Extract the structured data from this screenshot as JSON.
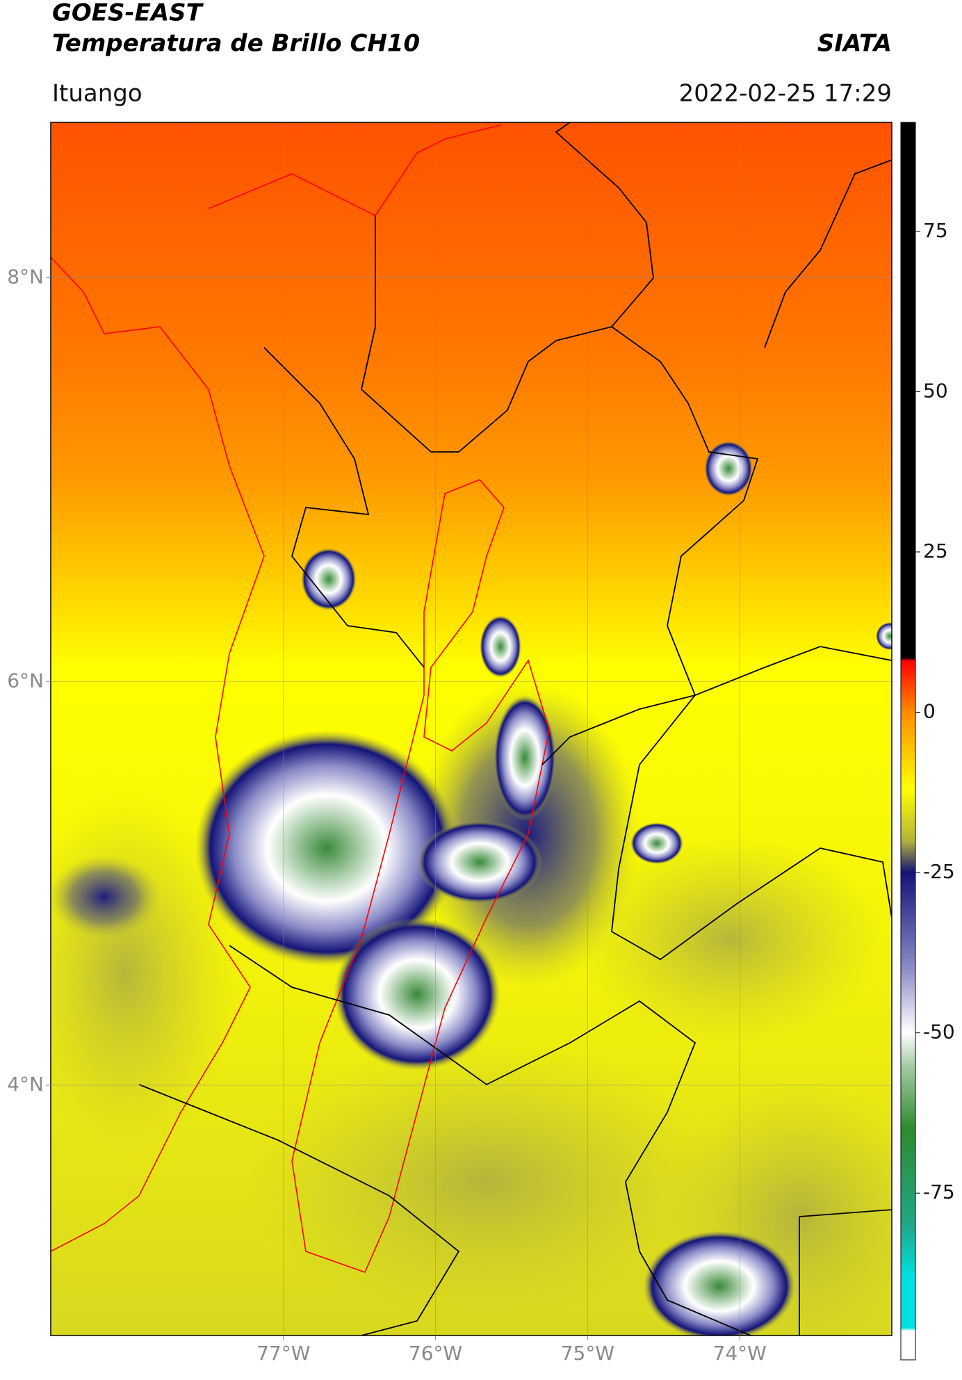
{
  "header": {
    "title_line1": "GOES-EAST",
    "title_line2": "Temperatura de Brillo CH10",
    "source": "SIATA",
    "location": "Ituango",
    "datetime": "2022-02-25 17:29"
  },
  "map": {
    "xlim": [
      -78.53,
      -73.0
    ],
    "ylim": [
      2.76,
      8.77
    ],
    "xticks": [
      {
        "value": -77,
        "label": "77°W"
      },
      {
        "value": -76,
        "label": "76°W"
      },
      {
        "value": -75,
        "label": "75°W"
      },
      {
        "value": -74,
        "label": "74°W"
      }
    ],
    "yticks": [
      {
        "value": 8,
        "label": "8°N"
      },
      {
        "value": 6,
        "label": "6°N"
      },
      {
        "value": 4,
        "label": "4°N"
      }
    ],
    "grid": true
  },
  "colorbar": {
    "lim": [
      -101,
      92
    ],
    "ticks": [
      75,
      50,
      25,
      0,
      -25,
      -50,
      -75
    ],
    "stops": [
      {
        "value": 92,
        "color": "#000000"
      },
      {
        "value": 8.5,
        "color": "#000000"
      },
      {
        "value": 8,
        "color": "#ff0000"
      },
      {
        "value": 0,
        "color": "#ff8c00"
      },
      {
        "value": -12,
        "color": "#ffff00"
      },
      {
        "value": -20,
        "color": "#b4b43c"
      },
      {
        "value": -25,
        "color": "#141478"
      },
      {
        "value": -40,
        "color": "#8c8cc8"
      },
      {
        "value": -50,
        "color": "#ffffff"
      },
      {
        "value": -55,
        "color": "#a8cca8"
      },
      {
        "value": -65,
        "color": "#2e8b2e"
      },
      {
        "value": -80,
        "color": "#20a888"
      },
      {
        "value": -88,
        "color": "#00e0e0"
      },
      {
        "value": -96,
        "color": "#00e0e0"
      },
      {
        "value": -96.5,
        "color": "#ffffff"
      },
      {
        "value": -101,
        "color": "#ffffff"
      }
    ]
  }
}
